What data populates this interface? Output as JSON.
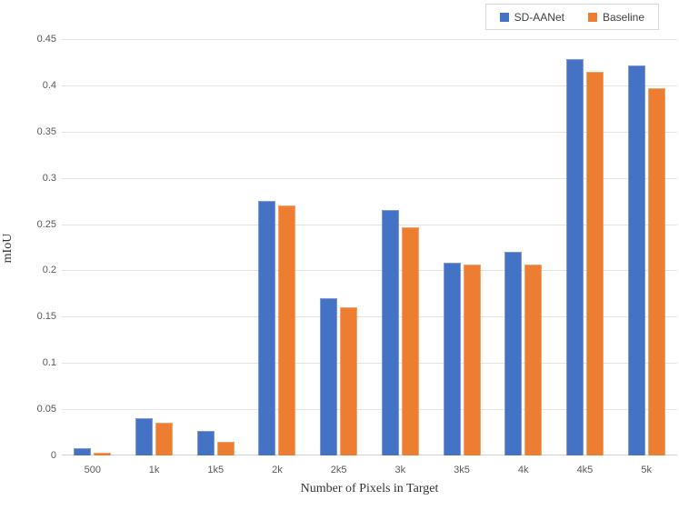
{
  "chart_data": {
    "type": "bar",
    "title": "",
    "xlabel": "Number of Pixels in Target",
    "ylabel": "mIoU",
    "categories": [
      "500",
      "1k",
      "1k5",
      "2k",
      "2k5",
      "3k",
      "3k5",
      "4k",
      "4k5",
      "5k"
    ],
    "series": [
      {
        "name": "SD-AANet",
        "color": "#4472C4",
        "values": [
          0.008,
          0.04,
          0.027,
          0.275,
          0.17,
          0.265,
          0.208,
          0.22,
          0.428,
          0.422
        ]
      },
      {
        "name": "Baseline",
        "color": "#ED7D31",
        "values": [
          0.003,
          0.035,
          0.015,
          0.27,
          0.16,
          0.247,
          0.206,
          0.206,
          0.415,
          0.397
        ]
      }
    ],
    "ylim": [
      0,
      0.45
    ],
    "ytick_step": 0.05,
    "ytick_labels": [
      "0",
      "0.05",
      "0.1",
      "0.15",
      "0.2",
      "0.25",
      "0.3",
      "0.35",
      "0.4",
      "0.45"
    ],
    "grid": true,
    "legend_position": "top-right"
  }
}
